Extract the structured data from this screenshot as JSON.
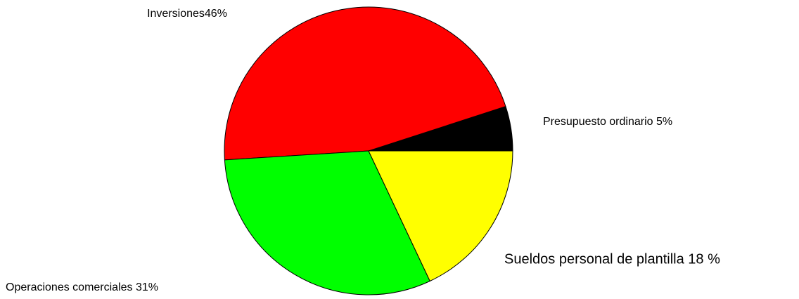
{
  "chart_data": {
    "type": "pie",
    "categories": [
      "Presupuesto ordinario 5%",
      "Inversiones46%",
      "Operaciones comerciales 31%",
      "Sueldos personal de plantilla 18 %"
    ],
    "values": [
      5,
      46,
      31,
      18
    ],
    "colors": [
      "#000000",
      "#ff0000",
      "#00ff00",
      "#ffff00"
    ]
  }
}
